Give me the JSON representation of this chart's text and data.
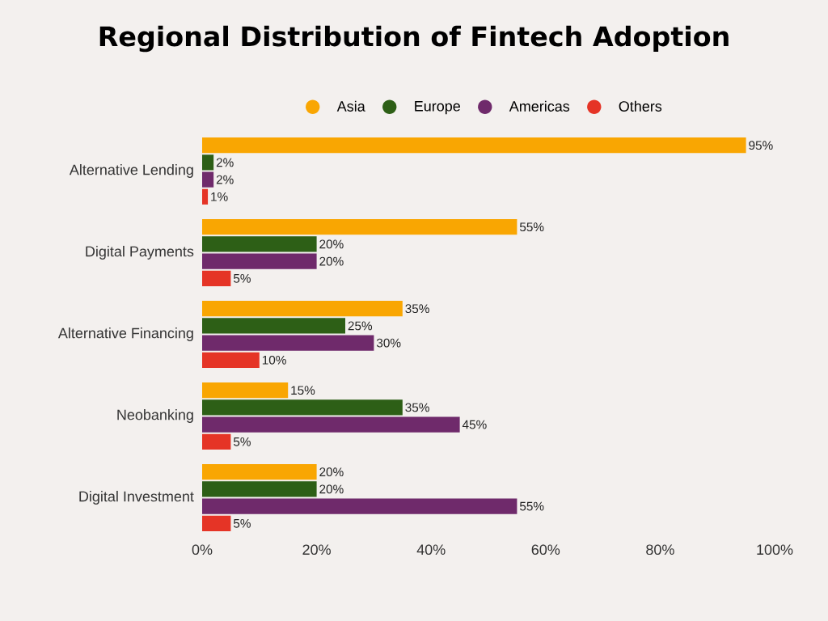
{
  "chart_data": {
    "type": "bar",
    "orientation": "horizontal",
    "title": "Regional Distribution of Fintech Adoption",
    "categories": [
      "Alternative Lending",
      "Digital Payments",
      "Alternative Financing",
      "Neobanking",
      "Digital Investment"
    ],
    "series": [
      {
        "name": "Asia",
        "color": "#f9a602",
        "values": [
          95,
          55,
          35,
          15,
          20
        ],
        "value_labels": [
          "95%",
          "55%",
          "35%",
          "15%",
          "20%"
        ]
      },
      {
        "name": "Europe",
        "color": "#2d5f16",
        "values": [
          2,
          20,
          25,
          35,
          20
        ],
        "value_labels": [
          "2%",
          "20%",
          "25%",
          "35%",
          "20%"
        ]
      },
      {
        "name": "Americas",
        "color": "#6f2a6b",
        "values": [
          2,
          20,
          30,
          45,
          55
        ],
        "value_labels": [
          "2%",
          "20%",
          "30%",
          "45%",
          "55%"
        ]
      },
      {
        "name": "Others",
        "color": "#e53426",
        "values": [
          1,
          5,
          10,
          5,
          5
        ],
        "value_labels": [
          "1%",
          "5%",
          "10%",
          "5%",
          "5%"
        ]
      }
    ],
    "xlim": [
      0,
      100
    ],
    "xticks": [
      {
        "value": 0,
        "label": "0%"
      },
      {
        "value": 20,
        "label": "20%"
      },
      {
        "value": 40,
        "label": "40%"
      },
      {
        "value": 60,
        "label": "60%"
      },
      {
        "value": 80,
        "label": "80%"
      },
      {
        "value": 100,
        "label": "100%"
      }
    ],
    "legend": "top",
    "grid": false
  }
}
